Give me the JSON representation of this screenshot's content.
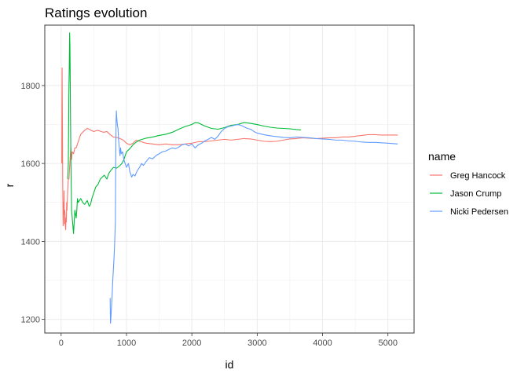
{
  "chart_data": {
    "type": "line",
    "title": "Ratings evolution",
    "xlabel": "id",
    "ylabel": "r",
    "xlim": [
      -250,
      5400
    ],
    "ylim": [
      1165,
      1955
    ],
    "x_ticks": [
      0,
      1000,
      2000,
      3000,
      4000,
      5000
    ],
    "y_ticks": [
      1200,
      1400,
      1600,
      1800
    ],
    "grid": true,
    "legend": {
      "title": "name",
      "position": "right"
    },
    "series": [
      {
        "name": "Greg Hancock",
        "color": "#F8766D",
        "points": [
          [
            10,
            1600
          ],
          [
            15,
            1845
          ],
          [
            20,
            1700
          ],
          [
            25,
            1540
          ],
          [
            30,
            1440
          ],
          [
            35,
            1500
          ],
          [
            40,
            1470
          ],
          [
            45,
            1530
          ],
          [
            50,
            1445
          ],
          [
            55,
            1480
          ],
          [
            60,
            1470
          ],
          [
            65,
            1440
          ],
          [
            70,
            1430
          ],
          [
            75,
            1460
          ],
          [
            80,
            1450
          ],
          [
            85,
            1500
          ],
          [
            90,
            1480
          ],
          [
            100,
            1530
          ],
          [
            110,
            1560
          ],
          [
            120,
            1560
          ],
          [
            130,
            1590
          ],
          [
            140,
            1620
          ],
          [
            150,
            1640
          ],
          [
            160,
            1610
          ],
          [
            170,
            1630
          ],
          [
            190,
            1625
          ],
          [
            210,
            1640
          ],
          [
            230,
            1640
          ],
          [
            250,
            1650
          ],
          [
            270,
            1660
          ],
          [
            300,
            1675
          ],
          [
            330,
            1680
          ],
          [
            360,
            1685
          ],
          [
            400,
            1690
          ],
          [
            430,
            1688
          ],
          [
            460,
            1685
          ],
          [
            500,
            1682
          ],
          [
            550,
            1685
          ],
          [
            600,
            1683
          ],
          [
            650,
            1680
          ],
          [
            700,
            1682
          ],
          [
            750,
            1674
          ],
          [
            800,
            1668
          ],
          [
            850,
            1667
          ],
          [
            900,
            1664
          ],
          [
            950,
            1660
          ],
          [
            1000,
            1652
          ],
          [
            1050,
            1648
          ],
          [
            1100,
            1652
          ],
          [
            1150,
            1660
          ],
          [
            1200,
            1657
          ],
          [
            1300,
            1652
          ],
          [
            1400,
            1650
          ],
          [
            1500,
            1648
          ],
          [
            1600,
            1650
          ],
          [
            1700,
            1648
          ],
          [
            1800,
            1648
          ],
          [
            1900,
            1650
          ],
          [
            2000,
            1652
          ],
          [
            2100,
            1656
          ],
          [
            2200,
            1656
          ],
          [
            2300,
            1658
          ],
          [
            2400,
            1660
          ],
          [
            2500,
            1662
          ],
          [
            2600,
            1660
          ],
          [
            2700,
            1662
          ],
          [
            2800,
            1664
          ],
          [
            2900,
            1663
          ],
          [
            3000,
            1660
          ],
          [
            3100,
            1657
          ],
          [
            3200,
            1656
          ],
          [
            3300,
            1657
          ],
          [
            3400,
            1660
          ],
          [
            3500,
            1663
          ],
          [
            3600,
            1664
          ],
          [
            3700,
            1666
          ],
          [
            3800,
            1665
          ],
          [
            3900,
            1664
          ],
          [
            4000,
            1665
          ],
          [
            4100,
            1666
          ],
          [
            4200,
            1666
          ],
          [
            4300,
            1668
          ],
          [
            4400,
            1668
          ],
          [
            4500,
            1670
          ],
          [
            4600,
            1672
          ],
          [
            4700,
            1674
          ],
          [
            4800,
            1674
          ],
          [
            4900,
            1673
          ],
          [
            5000,
            1673
          ],
          [
            5150,
            1673
          ]
        ]
      },
      {
        "name": "Jason Crump",
        "color": "#00BA38",
        "points": [
          [
            100,
            1560
          ],
          [
            110,
            1600
          ],
          [
            120,
            1800
          ],
          [
            125,
            1850
          ],
          [
            130,
            1935
          ],
          [
            135,
            1900
          ],
          [
            140,
            1800
          ],
          [
            150,
            1600
          ],
          [
            160,
            1480
          ],
          [
            170,
            1460
          ],
          [
            180,
            1440
          ],
          [
            190,
            1420
          ],
          [
            200,
            1450
          ],
          [
            210,
            1480
          ],
          [
            220,
            1470
          ],
          [
            230,
            1460
          ],
          [
            240,
            1480
          ],
          [
            250,
            1510
          ],
          [
            260,
            1500
          ],
          [
            280,
            1505
          ],
          [
            300,
            1510
          ],
          [
            330,
            1500
          ],
          [
            360,
            1495
          ],
          [
            400,
            1505
          ],
          [
            430,
            1490
          ],
          [
            450,
            1495
          ],
          [
            470,
            1510
          ],
          [
            500,
            1525
          ],
          [
            530,
            1540
          ],
          [
            560,
            1545
          ],
          [
            600,
            1560
          ],
          [
            630,
            1565
          ],
          [
            660,
            1570
          ],
          [
            700,
            1560
          ],
          [
            730,
            1575
          ],
          [
            760,
            1582
          ],
          [
            800,
            1590
          ],
          [
            850,
            1588
          ],
          [
            900,
            1595
          ],
          [
            930,
            1600
          ],
          [
            960,
            1610
          ],
          [
            1000,
            1630
          ],
          [
            1050,
            1638
          ],
          [
            1100,
            1648
          ],
          [
            1150,
            1655
          ],
          [
            1200,
            1660
          ],
          [
            1300,
            1665
          ],
          [
            1400,
            1668
          ],
          [
            1500,
            1672
          ],
          [
            1600,
            1675
          ],
          [
            1700,
            1680
          ],
          [
            1800,
            1688
          ],
          [
            1900,
            1695
          ],
          [
            2000,
            1700
          ],
          [
            2050,
            1705
          ],
          [
            2100,
            1704
          ],
          [
            2200,
            1696
          ],
          [
            2300,
            1690
          ],
          [
            2400,
            1688
          ],
          [
            2500,
            1692
          ],
          [
            2600,
            1698
          ],
          [
            2700,
            1700
          ],
          [
            2800,
            1705
          ],
          [
            2900,
            1703
          ],
          [
            3000,
            1700
          ],
          [
            3100,
            1696
          ],
          [
            3200,
            1693
          ],
          [
            3300,
            1691
          ],
          [
            3400,
            1690
          ],
          [
            3500,
            1689
          ],
          [
            3600,
            1687
          ],
          [
            3670,
            1686
          ]
        ]
      },
      {
        "name": "Nicki Pedersen",
        "color": "#619CFF",
        "points": [
          [
            750,
            1255
          ],
          [
            755,
            1190
          ],
          [
            760,
            1200
          ],
          [
            770,
            1230
          ],
          [
            780,
            1260
          ],
          [
            790,
            1300
          ],
          [
            800,
            1330
          ],
          [
            810,
            1360
          ],
          [
            820,
            1400
          ],
          [
            830,
            1450
          ],
          [
            835,
            1600
          ],
          [
            840,
            1700
          ],
          [
            845,
            1735
          ],
          [
            850,
            1720
          ],
          [
            860,
            1700
          ],
          [
            870,
            1690
          ],
          [
            880,
            1660
          ],
          [
            890,
            1640
          ],
          [
            900,
            1620
          ],
          [
            910,
            1640
          ],
          [
            920,
            1625
          ],
          [
            940,
            1630
          ],
          [
            960,
            1610
          ],
          [
            980,
            1600
          ],
          [
            1000,
            1590
          ],
          [
            1030,
            1600
          ],
          [
            1050,
            1580
          ],
          [
            1080,
            1565
          ],
          [
            1100,
            1572
          ],
          [
            1130,
            1568
          ],
          [
            1160,
            1580
          ],
          [
            1200,
            1590
          ],
          [
            1230,
            1600
          ],
          [
            1260,
            1595
          ],
          [
            1300,
            1605
          ],
          [
            1350,
            1615
          ],
          [
            1400,
            1612
          ],
          [
            1450,
            1620
          ],
          [
            1500,
            1625
          ],
          [
            1550,
            1630
          ],
          [
            1600,
            1632
          ],
          [
            1650,
            1636
          ],
          [
            1700,
            1640
          ],
          [
            1750,
            1638
          ],
          [
            1800,
            1642
          ],
          [
            1850,
            1648
          ],
          [
            1900,
            1650
          ],
          [
            1950,
            1645
          ],
          [
            2000,
            1650
          ],
          [
            2050,
            1640
          ],
          [
            2100,
            1648
          ],
          [
            2150,
            1652
          ],
          [
            2200,
            1658
          ],
          [
            2250,
            1662
          ],
          [
            2300,
            1667
          ],
          [
            2350,
            1662
          ],
          [
            2400,
            1670
          ],
          [
            2450,
            1682
          ],
          [
            2500,
            1690
          ],
          [
            2550,
            1694
          ],
          [
            2600,
            1696
          ],
          [
            2650,
            1698
          ],
          [
            2700,
            1700
          ],
          [
            2750,
            1698
          ],
          [
            2800,
            1694
          ],
          [
            2850,
            1690
          ],
          [
            2900,
            1688
          ],
          [
            2950,
            1682
          ],
          [
            3000,
            1678
          ],
          [
            3100,
            1674
          ],
          [
            3200,
            1671
          ],
          [
            3300,
            1669
          ],
          [
            3400,
            1667
          ],
          [
            3500,
            1666
          ],
          [
            3600,
            1668
          ],
          [
            3700,
            1667
          ],
          [
            3800,
            1666
          ],
          [
            3900,
            1664
          ],
          [
            4000,
            1663
          ],
          [
            4100,
            1662
          ],
          [
            4200,
            1660
          ],
          [
            4300,
            1660
          ],
          [
            4400,
            1658
          ],
          [
            4500,
            1657
          ],
          [
            4600,
            1655
          ],
          [
            4700,
            1654
          ],
          [
            4800,
            1654
          ],
          [
            4900,
            1653
          ],
          [
            5000,
            1652
          ],
          [
            5150,
            1650
          ]
        ]
      }
    ]
  }
}
